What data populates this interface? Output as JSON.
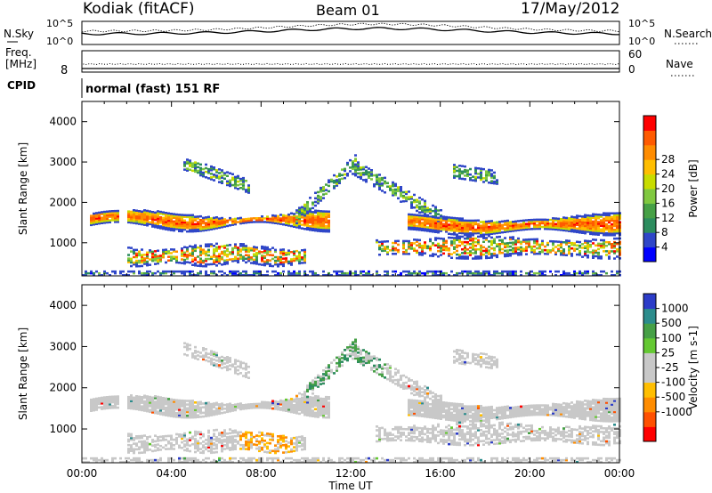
{
  "header": {
    "station": "Kodiak (fitACF)",
    "beam": "Beam 01",
    "date": "17/May/2012"
  },
  "strip": {
    "nsky_label": "N.Sky",
    "nsky_top": "10^5",
    "nsky_bottom": "10^0",
    "nsearch_label": "N.Search",
    "nsearch_top": "10^5",
    "nsearch_bottom": "10^0",
    "freq_label": "Freq.",
    "freq_unit": "[MHz]",
    "freq_tick": "8",
    "nave_label": "Nave",
    "nave_top": "60",
    "nave_bottom": "0",
    "cpid_label": "CPID",
    "cpid_value": "normal (fast) 151 RF"
  },
  "chart_data": [
    {
      "type": "heatmap",
      "panel": "power",
      "ylabel": "Slant Range [km]",
      "xlabel": "Time UT",
      "x_ticks": [
        "00:00",
        "04:00",
        "08:00",
        "12:00",
        "16:00",
        "20:00",
        "00:00"
      ],
      "y_ticks": [
        1000,
        2000,
        3000,
        4000
      ],
      "ylim": [
        180,
        4500
      ],
      "colorbar": {
        "label": "Power [dB]",
        "ticks": [
          4,
          8,
          12,
          16,
          20,
          24,
          28
        ],
        "colors": [
          "#0000ff",
          "#2f46c8",
          "#2c8c5e",
          "#46a046",
          "#80c840",
          "#c8dc00",
          "#ffbe00",
          "#ff8c00",
          "#ff5a00",
          "#ff0000"
        ]
      }
    },
    {
      "type": "heatmap",
      "panel": "velocity",
      "ylabel": "Slant Range [km]",
      "xlabel": "Time UT",
      "x_ticks": [
        "00:00",
        "04:00",
        "08:00",
        "12:00",
        "16:00",
        "20:00",
        "00:00"
      ],
      "y_ticks": [
        1000,
        2000,
        3000,
        4000
      ],
      "ylim": [
        180,
        4500
      ],
      "colorbar": {
        "label": "Velocity [m s-1]",
        "ticks": [
          1000,
          500,
          100,
          25,
          -25,
          -100,
          -500,
          -1000
        ],
        "colors": [
          "#2c3cc8",
          "#2c8c8c",
          "#46a046",
          "#64c832",
          "#c8c8c8",
          "#c8c8c8",
          "#ffbe00",
          "#ff8c00",
          "#ff5000",
          "#ff0000"
        ]
      }
    }
  ]
}
